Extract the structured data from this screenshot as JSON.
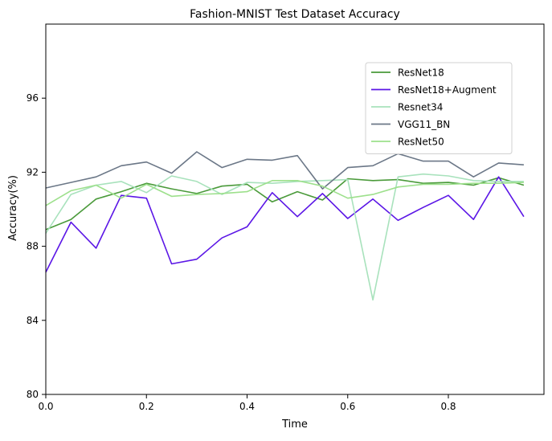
{
  "chart_data": {
    "type": "line",
    "title": "Fashion-MNIST Test Dataset Accuracy",
    "xlabel": "Time",
    "ylabel": "Accuracy(%)",
    "xlim": [
      0,
      0.99
    ],
    "ylim": [
      80,
      100
    ],
    "xticks": [
      0.0,
      0.2,
      0.4,
      0.6,
      0.8
    ],
    "xtick_labels": [
      "0.0",
      "0.2",
      "0.4",
      "0.6",
      "0.8"
    ],
    "yticks": [
      80,
      84,
      88,
      92,
      96
    ],
    "ytick_labels": [
      "80",
      "84",
      "88",
      "92",
      "96"
    ],
    "grid": false,
    "legend_position": "upper-right",
    "x": [
      0.0,
      0.05,
      0.1,
      0.15,
      0.2,
      0.25,
      0.3,
      0.35,
      0.4,
      0.45,
      0.5,
      0.55,
      0.6,
      0.65,
      0.7,
      0.75,
      0.8,
      0.85,
      0.9,
      0.95
    ],
    "series": [
      {
        "name": "ResNet18",
        "color": "#4a9a3a",
        "values": [
          88.9,
          89.45,
          90.55,
          90.95,
          91.4,
          91.1,
          90.85,
          91.25,
          91.35,
          90.4,
          90.95,
          90.5,
          91.65,
          91.55,
          91.6,
          91.4,
          91.45,
          91.3,
          91.7,
          91.3
        ]
      },
      {
        "name": "ResNet18+Augment",
        "color": "#5b16e6",
        "values": [
          86.6,
          89.3,
          87.9,
          90.75,
          90.6,
          87.05,
          87.3,
          88.45,
          89.05,
          90.9,
          89.6,
          90.85,
          89.5,
          90.55,
          89.4,
          90.1,
          90.75,
          89.45,
          91.75,
          89.6
        ]
      },
      {
        "name": "Resnet34",
        "color": "#a8e2bc",
        "values": [
          88.7,
          90.8,
          91.3,
          91.5,
          90.9,
          91.8,
          91.5,
          90.8,
          91.45,
          91.4,
          91.5,
          91.55,
          91.6,
          85.1,
          91.75,
          91.9,
          91.8,
          91.55,
          91.5,
          91.5
        ]
      },
      {
        "name": "VGG11_BN",
        "color": "#6b7787",
        "values": [
          91.15,
          91.45,
          91.75,
          92.35,
          92.55,
          91.95,
          93.1,
          92.25,
          92.7,
          92.65,
          92.9,
          91.1,
          92.25,
          92.35,
          93.0,
          92.6,
          92.6,
          91.75,
          92.5,
          92.4
        ]
      },
      {
        "name": "ResNet50",
        "color": "#9de08c",
        "values": [
          90.2,
          91.0,
          91.3,
          90.6,
          91.35,
          90.7,
          90.8,
          90.85,
          90.95,
          91.55,
          91.55,
          91.25,
          90.6,
          90.8,
          91.2,
          91.35,
          91.35,
          91.4,
          91.4,
          91.45
        ]
      }
    ]
  }
}
